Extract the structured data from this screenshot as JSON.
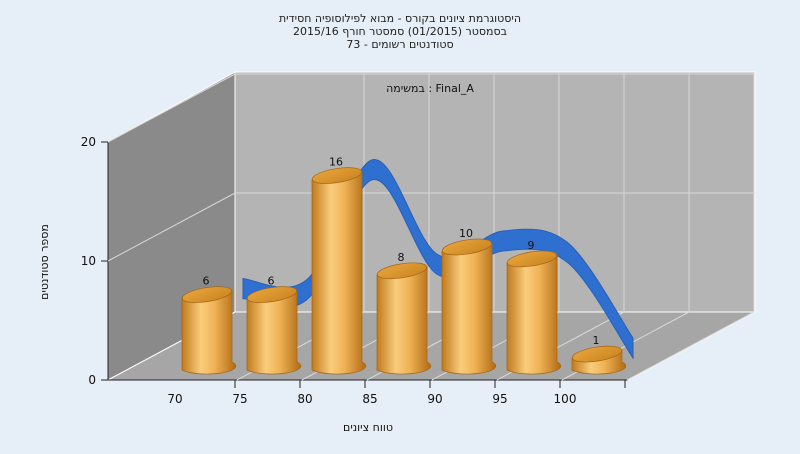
{
  "chart_data": {
    "type": "bar",
    "title_lines": [
      "היסטוגרמת ציונים בקורס - מבוא לפילוסופיה חסידית",
      "בסמסטר  (01/2015)  סמסטר חורף 2015/16",
      "סטודנטים רשומים - 73"
    ],
    "inner_title": "במשימה : Final_A",
    "xlabel": "טווח ציונים",
    "ylabel": "מספר סטודנטים",
    "x_ticks": [
      "70",
      "75",
      "80",
      "85",
      "90",
      "95",
      "100"
    ],
    "y_ticks": [
      "0",
      "10",
      "20"
    ],
    "ylim": [
      0,
      20
    ],
    "categories": [
      "70",
      "75",
      "80",
      "85",
      "90",
      "95",
      "100"
    ],
    "values": [
      6,
      6,
      16,
      8,
      10,
      9,
      1
    ],
    "series": [
      {
        "style": "bar",
        "values": [
          6,
          6,
          16,
          8,
          10,
          9,
          1
        ],
        "color": "#e8a23a"
      },
      {
        "style": "smoothed-line",
        "values": [
          6,
          6,
          16,
          8,
          10,
          9,
          1
        ],
        "color": "#2f6fd0"
      }
    ],
    "grid": true,
    "three_d": true
  }
}
